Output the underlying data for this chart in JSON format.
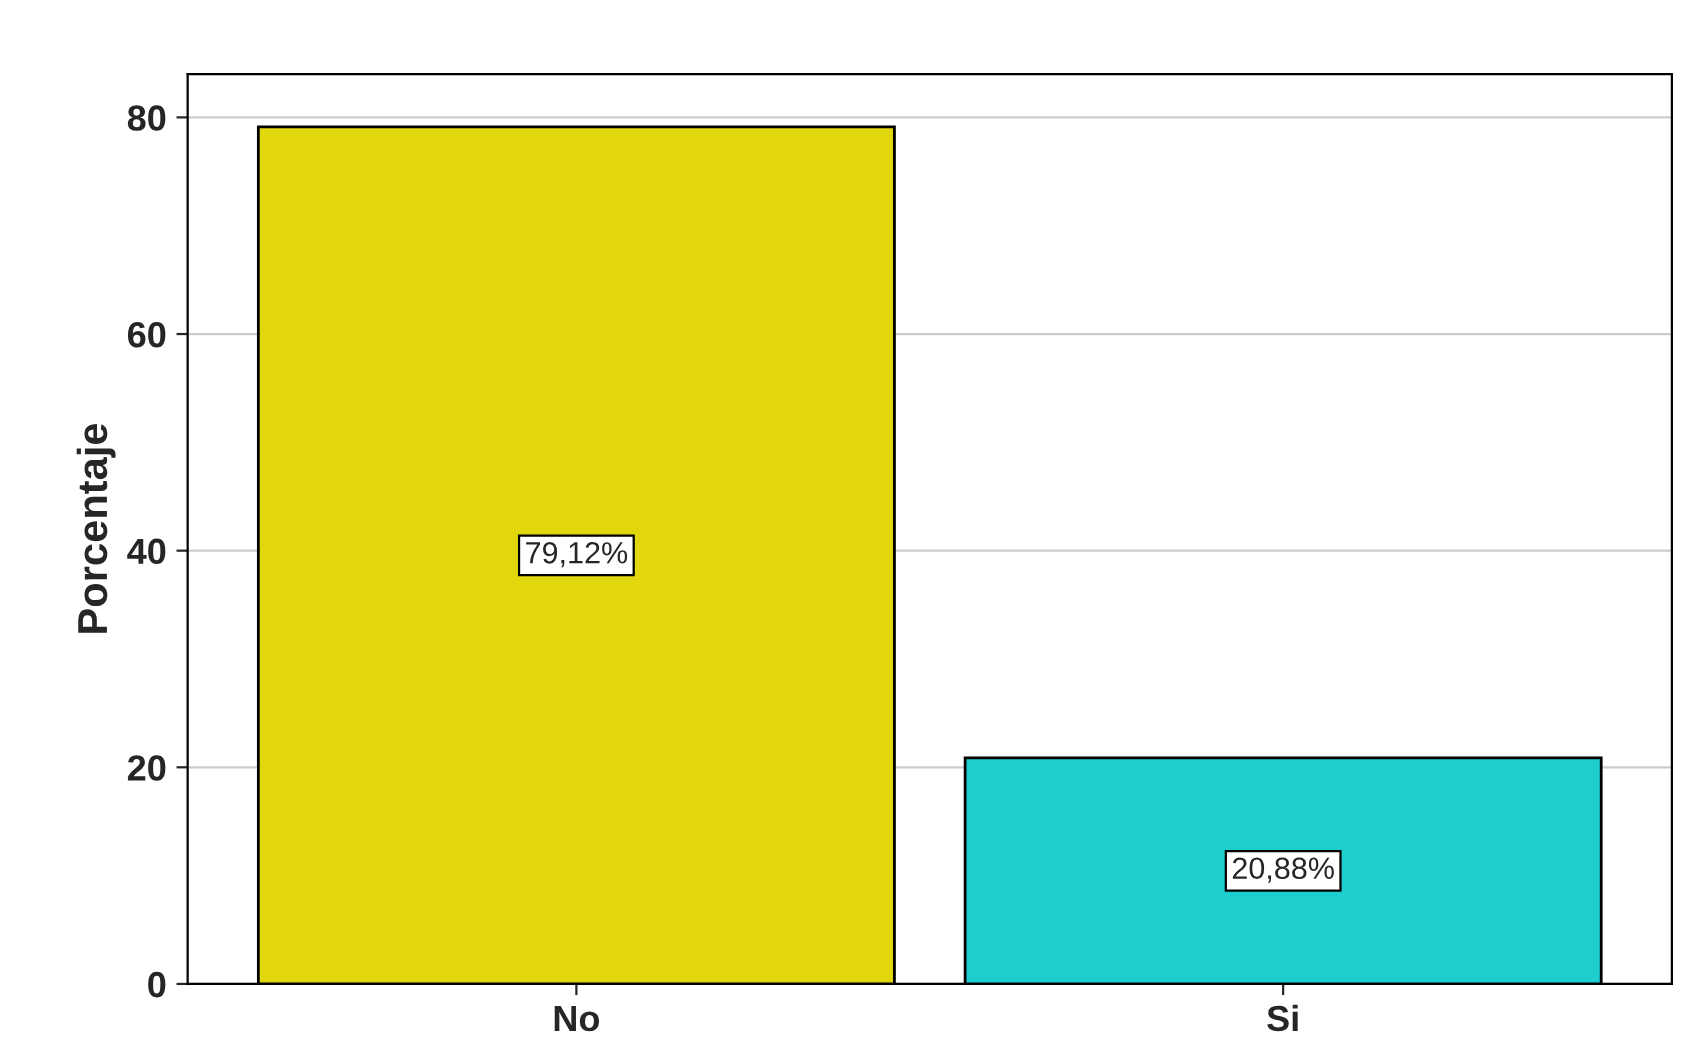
{
  "chart_data": {
    "type": "bar",
    "ylabel": "Porcentaje",
    "categories": [
      "No",
      "Si"
    ],
    "values": [
      79.12,
      20.88
    ],
    "colors": [
      "#e2d70c",
      "#1ecece"
    ],
    "value_labels": [
      "79,12%",
      "20,88%"
    ],
    "ylim": [
      0,
      84
    ],
    "yticks": [
      0,
      20,
      40,
      60,
      80
    ],
    "grid": "y"
  }
}
